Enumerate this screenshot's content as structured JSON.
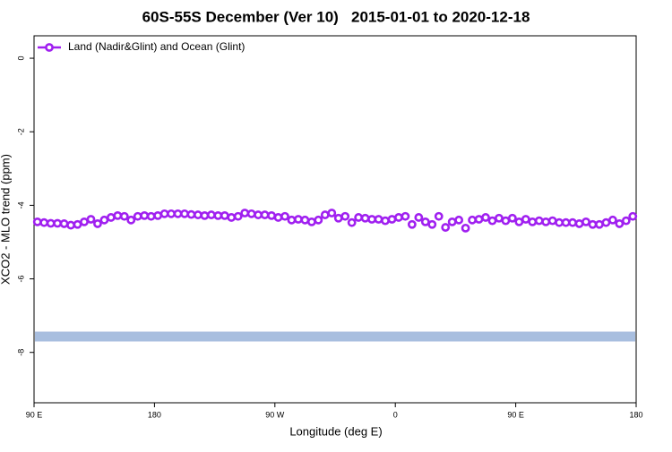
{
  "chart_data": {
    "type": "scatter",
    "title": "60S-55S December (Ver 10)   2015-01-01 to 2020-12-18",
    "x_label": "Longitude (deg E)",
    "y_label": "XCO2 - MLO trend (ppm)",
    "legend_position": "topleft",
    "xlim": [
      90,
      540
    ],
    "ylim": [
      -9.37,
      0.61
    ],
    "xticks": [
      {
        "value": 90,
        "label": "90 E"
      },
      180,
      {
        "value": 270,
        "label": "90 W"
      },
      {
        "value": 360,
        "label": "0"
      },
      {
        "value": 450,
        "label": "90 E"
      },
      {
        "value": 540,
        "label": "180"
      }
    ],
    "yticks": [
      0,
      -2,
      -4,
      -6,
      -8
    ],
    "x": [
      92.5,
      97.5,
      102.5,
      107.5,
      112.5,
      117.5,
      122.5,
      127.5,
      132.5,
      137.5,
      142.5,
      147.5,
      152.5,
      157.5,
      162.5,
      167.5,
      172.5,
      177.5,
      182.5,
      187.5,
      192.5,
      197.5,
      202.5,
      207.5,
      212.5,
      217.5,
      222.5,
      227.5,
      232.5,
      237.5,
      242.5,
      247.5,
      252.5,
      257.5,
      262.5,
      267.5,
      272.5,
      277.5,
      282.5,
      287.5,
      292.5,
      297.5,
      302.5,
      307.5,
      312.5,
      317.5,
      322.5,
      327.5,
      332.5,
      337.5,
      342.5,
      347.5,
      352.5,
      357.5,
      362.5,
      367.5,
      372.5,
      377.5,
      382.5,
      387.5,
      392.5,
      397.5,
      402.5,
      407.5,
      412.5,
      417.5,
      422.5,
      427.5,
      432.5,
      437.5,
      442.5,
      447.5,
      452.5,
      457.5,
      462.5,
      467.5,
      472.5,
      477.5,
      482.5,
      487.5,
      492.5,
      497.5,
      502.5,
      507.5,
      512.5,
      517.5,
      522.5,
      527.5,
      532.5,
      537.5
    ],
    "series": [
      {
        "name": "Land (Nadir&Glint) and Ocean (Glint)",
        "color": "#a020f0",
        "values": [
          -4.45,
          -4.47,
          -4.49,
          -4.49,
          -4.5,
          -4.54,
          -4.52,
          -4.45,
          -4.38,
          -4.5,
          -4.4,
          -4.33,
          -4.28,
          -4.3,
          -4.4,
          -4.3,
          -4.28,
          -4.3,
          -4.28,
          -4.23,
          -4.23,
          -4.23,
          -4.23,
          -4.25,
          -4.26,
          -4.28,
          -4.26,
          -4.28,
          -4.28,
          -4.33,
          -4.3,
          -4.21,
          -4.23,
          -4.26,
          -4.26,
          -4.28,
          -4.33,
          -4.3,
          -4.4,
          -4.38,
          -4.4,
          -4.45,
          -4.4,
          -4.26,
          -4.21,
          -4.35,
          -4.3,
          -4.47,
          -4.33,
          -4.35,
          -4.38,
          -4.38,
          -4.42,
          -4.38,
          -4.33,
          -4.3,
          -4.52,
          -4.33,
          -4.45,
          -4.52,
          -4.3,
          -4.6,
          -4.45,
          -4.4,
          -4.62,
          -4.4,
          -4.38,
          -4.33,
          -4.42,
          -4.35,
          -4.42,
          -4.35,
          -4.45,
          -4.38,
          -4.45,
          -4.42,
          -4.45,
          -4.42,
          -4.47,
          -4.47,
          -4.47,
          -4.5,
          -4.45,
          -4.52,
          -4.52,
          -4.47,
          -4.4,
          -4.5,
          -4.42,
          -4.3
        ]
      }
    ],
    "reference_line": {
      "value": -7.57,
      "color": "#a8bedf"
    }
  }
}
